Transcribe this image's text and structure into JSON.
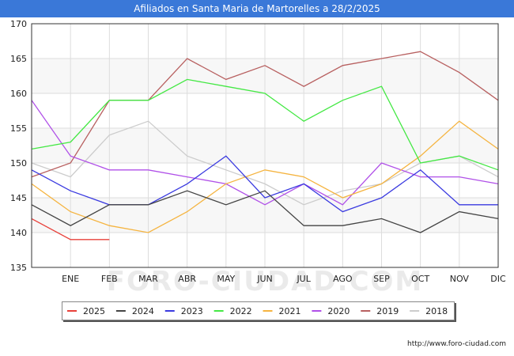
{
  "header": {
    "title": "Afiliados en Santa Maria de Martorelles a 28/2/2025"
  },
  "footer": {
    "source": "http://www.foro-ciudad.com"
  },
  "watermark": "FORO-CIUDAD.COM",
  "chart_data": {
    "type": "line",
    "title": "Afiliados en Santa Maria de Martorelles a 28/2/2025",
    "xlabel": "",
    "ylabel": "",
    "categories": [
      "",
      "ENE",
      "FEB",
      "MAR",
      "ABR",
      "MAY",
      "JUN",
      "JUL",
      "AGO",
      "SEP",
      "OCT",
      "NOV",
      "DIC"
    ],
    "ylim": [
      135,
      170
    ],
    "yticks": [
      135,
      140,
      145,
      150,
      155,
      160,
      165,
      170
    ],
    "grid": true,
    "legend_position": "bottom",
    "series": [
      {
        "name": "2025",
        "color": "#e8403a",
        "values": [
          142,
          139,
          139,
          null,
          null,
          null,
          null,
          null,
          null,
          null,
          null,
          null,
          null
        ]
      },
      {
        "name": "2024",
        "color": "#444444",
        "values": [
          144,
          141,
          144,
          144,
          146,
          144,
          146,
          141,
          141,
          142,
          140,
          143,
          142
        ]
      },
      {
        "name": "2023",
        "color": "#3a3ae0",
        "values": [
          149,
          146,
          144,
          144,
          147,
          151,
          145,
          147,
          143,
          145,
          149,
          144,
          144
        ]
      },
      {
        "name": "2022",
        "color": "#44e844",
        "values": [
          152,
          153,
          159,
          159,
          162,
          161,
          160,
          156,
          159,
          161,
          150,
          151,
          149
        ]
      },
      {
        "name": "2021",
        "color": "#f5b440",
        "values": [
          147,
          143,
          141,
          140,
          143,
          147,
          149,
          148,
          145,
          147,
          151,
          156,
          152
        ]
      },
      {
        "name": "2020",
        "color": "#b050e8",
        "values": [
          159,
          151,
          149,
          149,
          148,
          147,
          144,
          147,
          144,
          150,
          148,
          148,
          147
        ]
      },
      {
        "name": "2019",
        "color": "#b86060",
        "values": [
          148,
          150,
          159,
          159,
          165,
          162,
          164,
          161,
          164,
          165,
          166,
          163,
          159
        ]
      },
      {
        "name": "2018",
        "color": "#cccccc",
        "values": [
          150,
          148,
          154,
          156,
          151,
          149,
          147,
          144,
          146,
          147,
          150,
          151,
          148
        ]
      }
    ]
  }
}
